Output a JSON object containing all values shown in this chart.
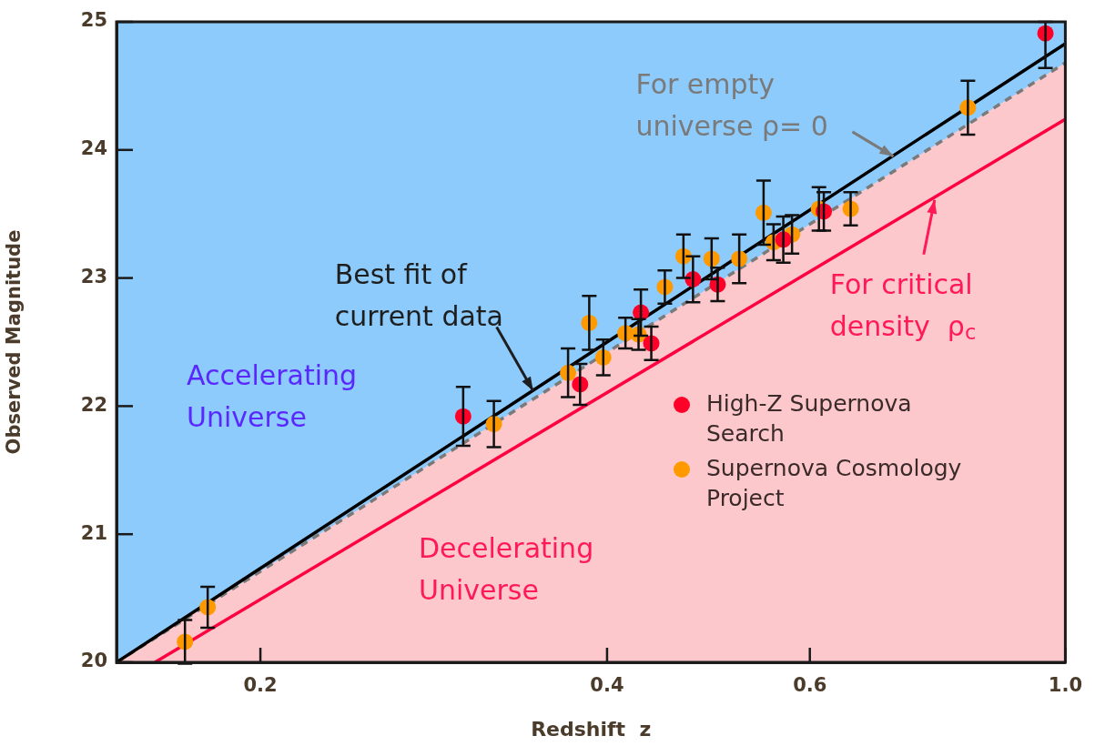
{
  "chart_data": {
    "type": "scatter",
    "xlabel": "Redshift  z",
    "ylabel": "Observed Magnitude",
    "log": "x",
    "xlim": [
      0.15,
      1.0
    ],
    "ylim": [
      20,
      25
    ],
    "xticks": [
      0.2,
      0.4,
      0.6,
      {
        "value": 1.0,
        "label": "1.0"
      }
    ],
    "yticks": [
      20,
      21,
      22,
      23,
      24,
      25
    ],
    "grid": false,
    "legend": "right",
    "series": [
      {
        "name": "High-Z Supernova Search",
        "type": "scatter",
        "marker": "circle",
        "color": "#ff0028",
        "x": [
          0.3,
          0.379,
          0.428,
          0.437,
          0.475,
          0.499,
          0.569,
          0.617,
          0.961
        ],
        "values": [
          21.92,
          22.17,
          22.73,
          22.49,
          22.99,
          22.95,
          23.3,
          23.52,
          24.91
        ],
        "errors": [
          0.23,
          0.16,
          0.18,
          0.13,
          0.18,
          0.13,
          0.18,
          0.15,
          [
            24.64,
            25.0
          ]
        ]
      },
      {
        "name": "Supernova Cosmology Project",
        "type": "scatter",
        "marker": "circle",
        "color": "#ff9900",
        "x": [
          0.172,
          0.18,
          0.319,
          0.37,
          0.386,
          0.397,
          0.415,
          0.426,
          0.449,
          0.466,
          0.493,
          0.521,
          0.547,
          0.558,
          0.579,
          0.611,
          0.651,
          0.823
        ],
        "values": [
          20.16,
          20.43,
          21.86,
          22.26,
          22.65,
          22.38,
          22.57,
          22.56,
          22.93,
          23.17,
          23.15,
          23.15,
          23.51,
          23.28,
          23.34,
          23.54,
          23.54,
          24.33
        ],
        "errors": [
          0.17,
          0.16,
          0.18,
          0.19,
          0.21,
          0.14,
          0.12,
          0.12,
          0.13,
          0.17,
          0.16,
          0.19,
          0.25,
          0.14,
          0.15,
          0.17,
          0.13,
          0.21
        ]
      },
      {
        "type": "line",
        "marker": "none",
        "color": "#000000",
        "x": [
          0.15,
          0.4,
          1.0
        ],
        "values": [
          20.0,
          22.5,
          24.83
        ]
      },
      {
        "type": "line",
        "marker": "none",
        "color": "#7a7a7a",
        "line_style": "dashed",
        "x": [
          0.15,
          1.0
        ],
        "values": [
          20.0,
          24.68
        ]
      },
      {
        "type": "line",
        "marker": "none",
        "color": "#ff0040",
        "x": [
          0.162,
          1.0
        ],
        "values": [
          20.0,
          24.24
        ]
      }
    ],
    "annotations": [
      {
        "text": "Best fit of\ncurrent data",
        "x": 0.345,
        "y": 22.12
      },
      {
        "text": "For empty\nuniverse ρ= 0",
        "x": 0.709,
        "y": 23.95
      },
      {
        "text": "For critical\ndensity  ρ$_{c}$",
        "x": 0.77,
        "y": 23.61
      },
      "Accelerating\nUniverse",
      "Decelerating\nUniverse"
    ]
  }
}
